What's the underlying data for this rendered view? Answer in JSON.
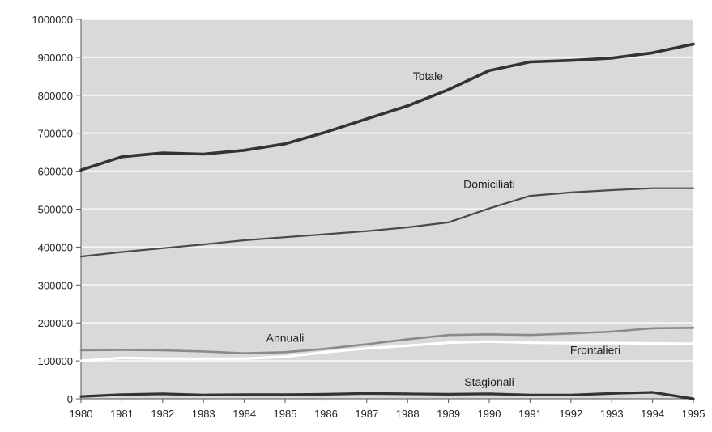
{
  "chart_data": {
    "type": "line",
    "title": "",
    "xlabel": "",
    "ylabel": "",
    "x": [
      1980,
      1981,
      1982,
      1983,
      1984,
      1985,
      1986,
      1987,
      1988,
      1989,
      1990,
      1991,
      1992,
      1993,
      1994,
      1995
    ],
    "xlim": [
      1980,
      1995
    ],
    "ylim": [
      0,
      1000000
    ],
    "yticks": [
      0,
      100000,
      200000,
      300000,
      400000,
      500000,
      600000,
      700000,
      800000,
      900000,
      1000000
    ],
    "ytick_labels": [
      "0",
      "100000",
      "200000",
      "300000",
      "400000",
      "500000",
      "600000",
      "700000",
      "800000",
      "900000",
      "1000000"
    ],
    "xtick_labels": [
      "1980",
      "1981",
      "1982",
      "1983",
      "1984",
      "1985",
      "1986",
      "1987",
      "1988",
      "1989",
      "1990",
      "1991",
      "1992",
      "1993",
      "1994",
      "1995"
    ],
    "grid": true,
    "legend": "none",
    "background_color": "#d9d9d9",
    "grid_color": "#f4f4f4",
    "series": [
      {
        "name": "Totale",
        "color": "#333333",
        "values": [
          603000,
          638000,
          648000,
          645000,
          655000,
          672000,
          703000,
          738000,
          772000,
          815000,
          865000,
          888000,
          892000,
          898000,
          912000,
          935000
        ]
      },
      {
        "name": "Domiciliati",
        "color": "#4a4a4a",
        "values": [
          375000,
          387000,
          397000,
          407000,
          418000,
          426000,
          434000,
          442000,
          452000,
          465000,
          502000,
          535000,
          544000,
          550000,
          555000,
          555000
        ]
      },
      {
        "name": "Annuali",
        "color": "#8a8a8a",
        "values": [
          128000,
          129000,
          128000,
          125000,
          120000,
          123000,
          132000,
          144000,
          157000,
          168000,
          170000,
          168000,
          172000,
          177000,
          186000,
          187000
        ]
      },
      {
        "name": "Frontalieri",
        "color": "#ffffff",
        "values": [
          100000,
          108000,
          106000,
          106000,
          106000,
          111000,
          123000,
          133000,
          140000,
          148000,
          151000,
          148000,
          147000,
          147000,
          146000,
          145000
        ]
      },
      {
        "name": "Stagionali",
        "color": "#333333",
        "values": [
          6000,
          11000,
          13000,
          10000,
          11000,
          11000,
          12000,
          14000,
          13000,
          12000,
          13000,
          10000,
          10000,
          14000,
          17000,
          0
        ]
      }
    ]
  }
}
